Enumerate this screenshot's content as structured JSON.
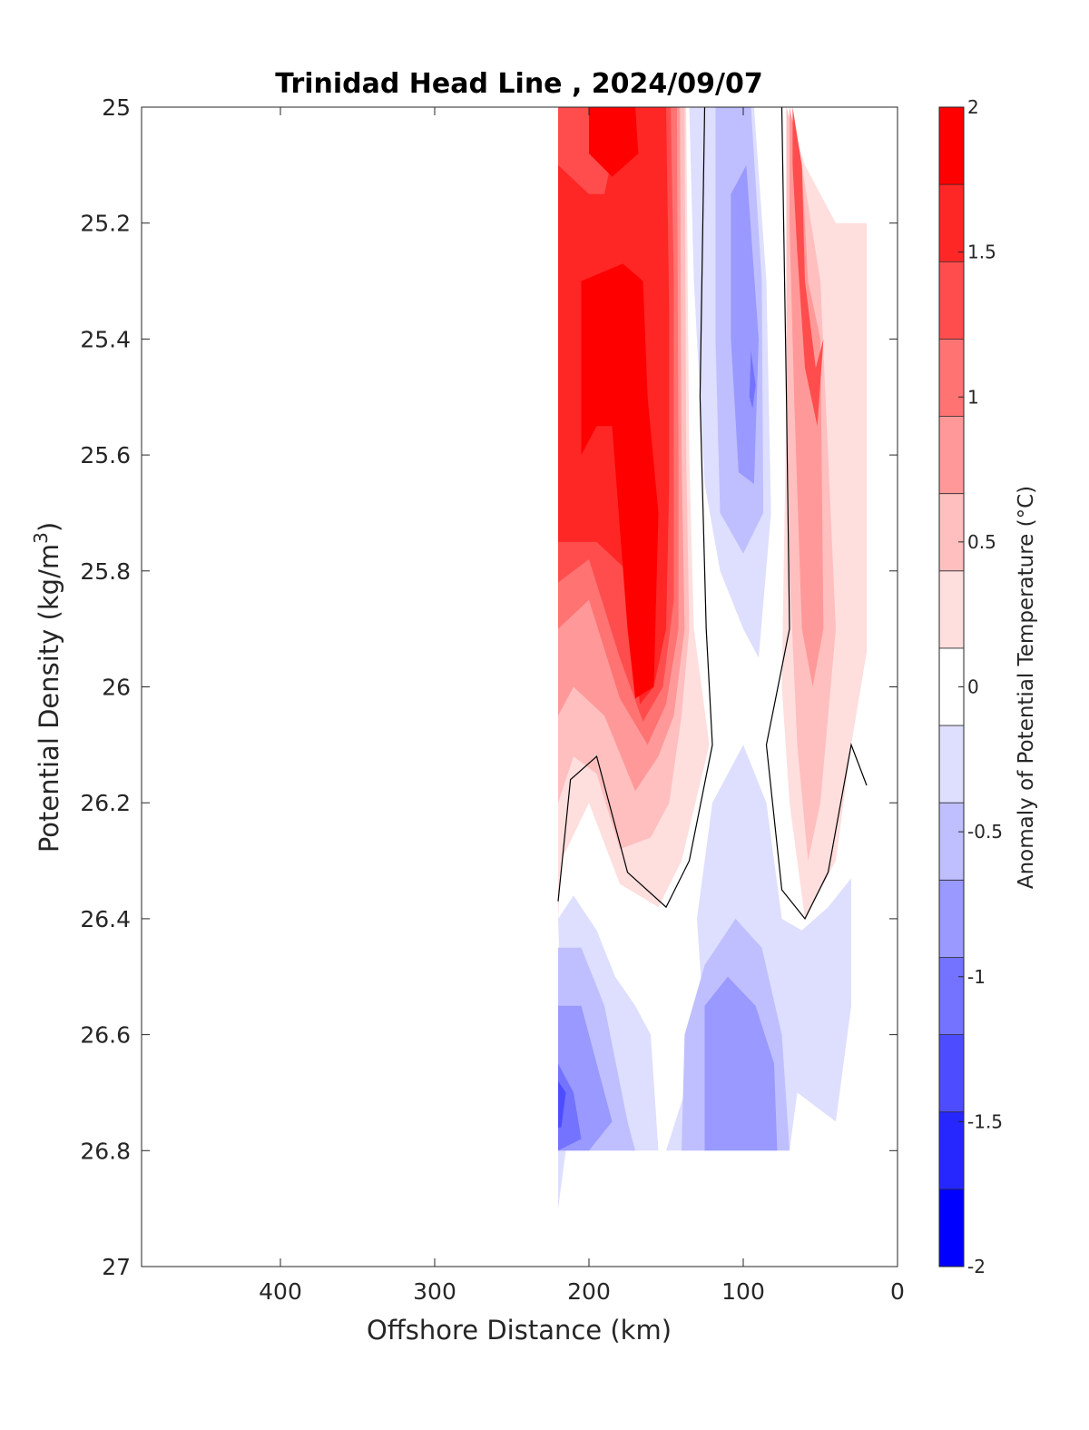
{
  "chart_data": {
    "type": "contour",
    "title": "Trinidad Head Line , 2024/09/07",
    "xlabel": "Offshore Distance (km)",
    "ylabel": "Potential Density (kg/m",
    "ylabel_sup": "3",
    "ylabel_close": ")",
    "xlim": [
      490,
      0
    ],
    "ylim": [
      25,
      27
    ],
    "y_reversed": true,
    "x_reversed": true,
    "xticks": [
      400,
      300,
      200,
      100,
      0
    ],
    "xtick_labels": [
      "400",
      "300",
      "200",
      "100",
      "0"
    ],
    "yticks": [
      25,
      25.2,
      25.4,
      25.6,
      25.8,
      26,
      26.2,
      26.4,
      26.6,
      26.8,
      27
    ],
    "ytick_labels": [
      "25",
      "25.2",
      "25.4",
      "25.6",
      "25.8",
      "26",
      "26.2",
      "26.4",
      "26.6",
      "26.8",
      "27"
    ],
    "colorbar": {
      "label": "Anomaly of Potential Temperature (°C)",
      "range": [
        -2,
        2
      ],
      "levels": [
        -2,
        -1.75,
        -1.5,
        -1.25,
        -1,
        -0.75,
        -0.5,
        -0.25,
        0.25,
        0.5,
        0.75,
        1,
        1.25,
        1.5,
        1.75,
        2
      ],
      "colors_top_to_bottom": [
        "#ff0000",
        "#ff2626",
        "#ff4d4d",
        "#ff7373",
        "#ff9999",
        "#ffbfbf",
        "#ffdede",
        "#ffffff",
        "#dedeff",
        "#bfbfff",
        "#9999ff",
        "#7373ff",
        "#4d4dff",
        "#2626ff",
        "#0000ff"
      ],
      "tick_values": [
        2,
        1.5,
        1,
        0.5,
        0,
        -0.5,
        -1,
        -1.5,
        -2
      ],
      "tick_labels": [
        "2",
        "1.5",
        "1",
        "0.5",
        "0",
        "-0.5",
        "-1",
        "-1.5",
        "-2"
      ]
    },
    "regions": [
      {
        "level": 0.25,
        "color": "#ffdede",
        "points": [
          [
            220,
            25
          ],
          [
            137,
            25
          ],
          [
            135,
            25.6
          ],
          [
            132,
            25.9
          ],
          [
            127,
            26
          ],
          [
            122,
            26.1
          ],
          [
            140,
            26.3
          ],
          [
            155,
            26.38
          ],
          [
            180,
            26.34
          ],
          [
            200,
            26.2
          ],
          [
            218,
            26.3
          ],
          [
            220,
            26.4
          ]
        ]
      },
      {
        "level": 0.5,
        "color": "#ffbfbf",
        "points": [
          [
            220,
            25
          ],
          [
            138,
            25
          ],
          [
            137,
            25.6
          ],
          [
            135,
            25.9
          ],
          [
            140,
            26.05
          ],
          [
            148,
            26.2
          ],
          [
            160,
            26.26
          ],
          [
            180,
            26.28
          ],
          [
            195,
            26.15
          ],
          [
            210,
            26.12
          ],
          [
            220,
            26.2
          ]
        ]
      },
      {
        "level": 0.75,
        "color": "#ff9999",
        "points": [
          [
            220,
            25
          ],
          [
            141,
            25
          ],
          [
            140,
            25.6
          ],
          [
            138,
            25.9
          ],
          [
            145,
            26.05
          ],
          [
            155,
            26.12
          ],
          [
            170,
            26.18
          ],
          [
            190,
            26.05
          ],
          [
            210,
            26.0
          ],
          [
            220,
            26.05
          ]
        ]
      },
      {
        "level": 1,
        "color": "#ff7373",
        "points": [
          [
            220,
            25
          ],
          [
            143,
            25
          ],
          [
            142,
            25.6
          ],
          [
            142,
            25.9
          ],
          [
            150,
            26.03
          ],
          [
            162,
            26.1
          ],
          [
            180,
            26.02
          ],
          [
            200,
            25.85
          ],
          [
            220,
            25.9
          ]
        ]
      },
      {
        "level": 1.25,
        "color": "#ff4d4d",
        "points": [
          [
            220,
            25
          ],
          [
            147,
            25
          ],
          [
            145,
            25.3
          ],
          [
            145,
            25.6
          ],
          [
            145,
            25.85
          ],
          [
            152,
            26.0
          ],
          [
            165,
            26.06
          ],
          [
            180,
            25.95
          ],
          [
            200,
            25.78
          ],
          [
            220,
            25.82
          ]
        ]
      },
      {
        "level": 1.5,
        "color": "#ff2626",
        "points": [
          [
            220,
            25.1
          ],
          [
            200,
            25.15
          ],
          [
            190,
            25.15
          ],
          [
            178,
            25
          ],
          [
            150,
            25
          ],
          [
            148,
            25.35
          ],
          [
            148,
            25.65
          ],
          [
            150,
            25.9
          ],
          [
            158,
            26.0
          ],
          [
            167,
            26.03
          ],
          [
            175,
            25.8
          ],
          [
            195,
            25.75
          ],
          [
            220,
            25.75
          ]
        ]
      },
      {
        "level": 1.75,
        "color": "#ff0000",
        "points": [
          [
            205,
            25.3
          ],
          [
            178,
            25.27
          ],
          [
            165,
            25.3
          ],
          [
            162,
            25.5
          ],
          [
            155,
            25.7
          ],
          [
            158,
            26.0
          ],
          [
            170,
            26.02
          ],
          [
            175,
            25.9
          ],
          [
            185,
            25.55
          ],
          [
            195,
            25.55
          ],
          [
            205,
            25.6
          ]
        ]
      },
      {
        "level": 2,
        "color": "#ff0000",
        "points": [
          [
            200,
            25
          ],
          [
            170,
            25
          ],
          [
            168,
            25.08
          ],
          [
            185,
            25.12
          ],
          [
            200,
            25.08
          ]
        ]
      },
      {
        "level": -0.25,
        "color": "#dedeff",
        "points": [
          [
            135,
            25
          ],
          [
            93,
            25
          ],
          [
            85,
            25.3
          ],
          [
            82,
            25.7
          ],
          [
            90,
            25.95
          ],
          [
            100,
            25.9
          ],
          [
            115,
            25.8
          ],
          [
            125,
            25.65
          ],
          [
            132,
            25.3
          ]
        ]
      },
      {
        "level": -0.5,
        "color": "#bfbfff",
        "points": [
          [
            118,
            25
          ],
          [
            95,
            25
          ],
          [
            88,
            25.3
          ],
          [
            87,
            25.7
          ],
          [
            100,
            25.77
          ],
          [
            115,
            25.7
          ],
          [
            118,
            25.4
          ]
        ]
      },
      {
        "level": -0.75,
        "color": "#9999ff",
        "points": [
          [
            108,
            25.15
          ],
          [
            98,
            25.1
          ],
          [
            90,
            25.4
          ],
          [
            93,
            25.65
          ],
          [
            103,
            25.63
          ],
          [
            108,
            25.4
          ]
        ]
      },
      {
        "level": -1,
        "color": "#7373ff",
        "points": [
          [
            95,
            25.42
          ],
          [
            92,
            25.48
          ],
          [
            94,
            25.52
          ],
          [
            96,
            25.5
          ]
        ]
      },
      {
        "level": 0.25,
        "color": "#ffdede",
        "points": [
          [
            72,
            25
          ],
          [
            60,
            25.1
          ],
          [
            40,
            25.2
          ],
          [
            20,
            25.2
          ],
          [
            20,
            25.94
          ],
          [
            30,
            26.1
          ],
          [
            40,
            26.3
          ],
          [
            60,
            26.4
          ],
          [
            70,
            26.2
          ],
          [
            75,
            26.0
          ],
          [
            72,
            25.5
          ]
        ]
      },
      {
        "level": 0.5,
        "color": "#ffbfbf",
        "points": [
          [
            72,
            25
          ],
          [
            62,
            25.1
          ],
          [
            50,
            25.3
          ],
          [
            45,
            25.6
          ],
          [
            40,
            25.9
          ],
          [
            50,
            26.2
          ],
          [
            58,
            26.3
          ],
          [
            65,
            26.1
          ],
          [
            70,
            25.8
          ],
          [
            72,
            25.4
          ]
        ]
      },
      {
        "level": 0.75,
        "color": "#ff9999",
        "points": [
          [
            70,
            25
          ],
          [
            62,
            25.1
          ],
          [
            58,
            25.3
          ],
          [
            50,
            25.4
          ],
          [
            48,
            25.9
          ],
          [
            55,
            26.0
          ],
          [
            62,
            25.9
          ],
          [
            67,
            25.5
          ],
          [
            70,
            25.2
          ]
        ]
      },
      {
        "level": 1.25,
        "color": "#ff4d4d",
        "points": [
          [
            68,
            25
          ],
          [
            62,
            25.1
          ],
          [
            60,
            25.3
          ],
          [
            53,
            25.45
          ],
          [
            48,
            25.4
          ],
          [
            52,
            25.55
          ],
          [
            60,
            25.45
          ],
          [
            65,
            25.25
          ],
          [
            68,
            25.1
          ]
        ]
      },
      {
        "level": -0.25,
        "color": "#dedeff",
        "points": [
          [
            220,
            26.4
          ],
          [
            210,
            26.36
          ],
          [
            195,
            26.42
          ],
          [
            183,
            26.5
          ],
          [
            170,
            26.55
          ],
          [
            160,
            26.6
          ],
          [
            155,
            26.8
          ],
          [
            150,
            26.8
          ],
          [
            138,
            26.7
          ],
          [
            125,
            26.6
          ],
          [
            130,
            26.4
          ],
          [
            120,
            26.2
          ],
          [
            100,
            26.1
          ],
          [
            85,
            26.2
          ],
          [
            75,
            26.4
          ],
          [
            62,
            26.42
          ],
          [
            45,
            26.38
          ],
          [
            30,
            26.33
          ],
          [
            30,
            26.55
          ],
          [
            40,
            26.75
          ],
          [
            65,
            26.7
          ],
          [
            70,
            26.8
          ],
          [
            220,
            26.8
          ],
          [
            220,
            26.9
          ],
          [
            215,
            26.8
          ]
        ]
      },
      {
        "level": -0.5,
        "color": "#bfbfff",
        "points": [
          [
            220,
            26.45
          ],
          [
            205,
            26.45
          ],
          [
            190,
            26.55
          ],
          [
            175,
            26.75
          ],
          [
            170,
            26.8
          ],
          [
            220,
            26.8
          ],
          [
            220,
            26.9
          ]
        ]
      },
      {
        "level": -0.75,
        "color": "#9999ff",
        "points": [
          [
            220,
            26.55
          ],
          [
            205,
            26.55
          ],
          [
            195,
            26.65
          ],
          [
            185,
            26.75
          ],
          [
            200,
            26.8
          ],
          [
            220,
            26.8
          ]
        ]
      },
      {
        "level": -1,
        "color": "#7373ff",
        "points": [
          [
            220,
            26.65
          ],
          [
            210,
            26.7
          ],
          [
            205,
            26.78
          ],
          [
            220,
            26.8
          ]
        ]
      },
      {
        "level": -1.25,
        "color": "#4d4dff",
        "points": [
          [
            220,
            26.68
          ],
          [
            215,
            26.7
          ],
          [
            218,
            26.76
          ],
          [
            220,
            26.76
          ]
        ]
      },
      {
        "level": -0.5,
        "color": "#bfbfff",
        "points": [
          [
            138,
            26.6
          ],
          [
            125,
            26.48
          ],
          [
            105,
            26.4
          ],
          [
            88,
            26.45
          ],
          [
            75,
            26.6
          ],
          [
            70,
            26.8
          ],
          [
            140,
            26.8
          ]
        ]
      },
      {
        "level": -0.75,
        "color": "#9999ff",
        "points": [
          [
            125,
            26.55
          ],
          [
            110,
            26.5
          ],
          [
            92,
            26.55
          ],
          [
            80,
            26.65
          ],
          [
            78,
            26.8
          ],
          [
            125,
            26.8
          ]
        ]
      }
    ],
    "zero_contours": [
      [
        [
          125,
          25
        ],
        [
          128,
          25.5
        ],
        [
          124,
          25.9
        ],
        [
          120,
          26.1
        ],
        [
          135,
          26.3
        ],
        [
          150,
          26.38
        ],
        [
          175,
          26.32
        ],
        [
          195,
          26.12
        ],
        [
          212,
          26.16
        ],
        [
          220,
          26.37
        ]
      ],
      [
        [
          75,
          25
        ],
        [
          72,
          25.5
        ],
        [
          70,
          25.9
        ],
        [
          85,
          26.1
        ],
        [
          75,
          26.35
        ],
        [
          60,
          26.4
        ],
        [
          45,
          26.32
        ],
        [
          30,
          26.1
        ],
        [
          20,
          26.17
        ]
      ]
    ]
  }
}
